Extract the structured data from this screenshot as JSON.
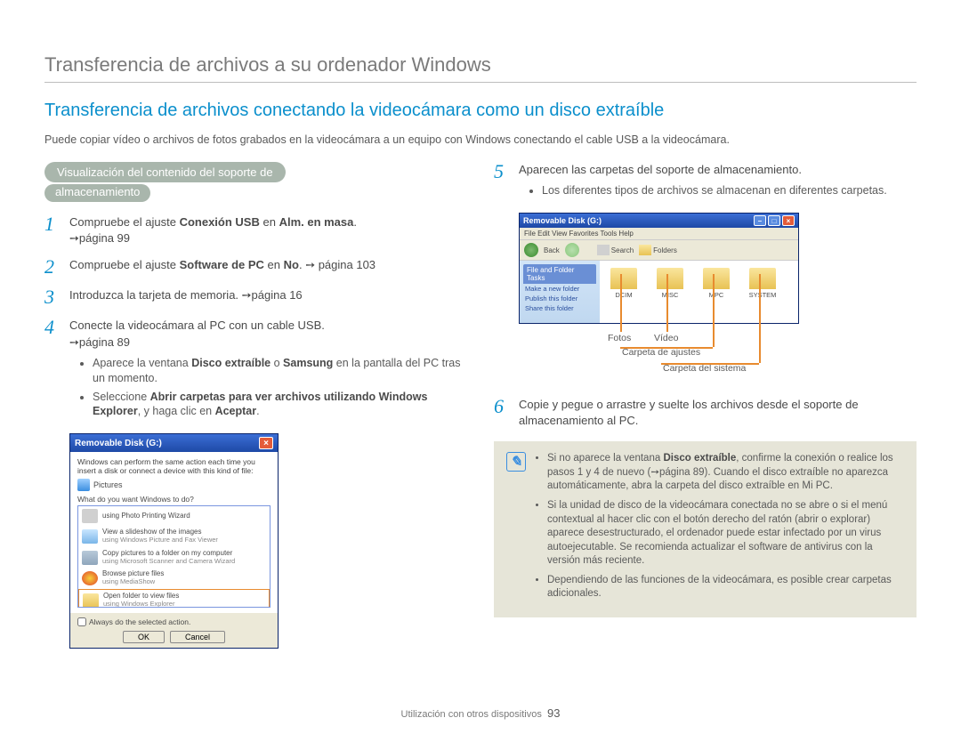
{
  "page": {
    "title": "Transferencia de archivos a su ordenador Windows",
    "section_title": "Transferencia de archivos conectando la videocámara como un disco extraíble",
    "intro": "Puede copiar vídeo o archivos de fotos grabados en la videocámara a un equipo con Windows conectando el cable USB a la videocámara.",
    "footer_text": "Utilización con otros dispositivos",
    "page_number": "93"
  },
  "pill": {
    "line1": "Visualización del contenido del soporte de",
    "line2": "almacenamiento"
  },
  "steps": {
    "s1": {
      "num": "1",
      "pre": "Compruebe el ajuste ",
      "b1": "Conexión USB",
      "mid": " en ",
      "b2": "Alm. en masa",
      "post": ". ",
      "ref": "➙página 99"
    },
    "s2": {
      "num": "2",
      "pre": "Compruebe el ajuste ",
      "b1": "Software de PC",
      "mid": " en ",
      "b2": "No",
      "post": ". ➙ página 103"
    },
    "s3": {
      "num": "3",
      "text": "Introduzca la tarjeta de memoria. ➙página 16"
    },
    "s4": {
      "num": "4",
      "text": "Conecte la videocámara al PC con un cable USB. ",
      "ref": "➙página 89",
      "b1_pre": "Aparece la ventana ",
      "b1_bold1": "Disco extraíble",
      "b1_mid": " o ",
      "b1_bold2": "Samsung",
      "b1_post": " en la pantalla del PC tras un momento.",
      "b2_pre": "Seleccione ",
      "b2_bold1": "Abrir carpetas para ver archivos utilizando Windows Explorer",
      "b2_mid": ", y haga clic en ",
      "b2_bold2": "Aceptar",
      "b2_post": "."
    },
    "s5": {
      "num": "5",
      "text": "Aparecen las carpetas del soporte de almacenamiento.",
      "bullet": "Los diferentes tipos de archivos se almacenan en diferentes carpetas."
    },
    "s6": {
      "num": "6",
      "text": "Copie y pegue o arrastre y suelte los archivos desde el soporte de almacenamiento al PC."
    }
  },
  "autoplay": {
    "title": "Removable Disk (G:)",
    "desc": "Windows can perform the same action each time you insert a disk or connect a device with this kind of file:",
    "pictures_label": "Pictures",
    "prompt": "What do you want Windows to do?",
    "items": [
      {
        "icon": "printer",
        "t": "using Photo Printing Wizard",
        "s": ""
      },
      {
        "icon": "viewer",
        "t": "View a slideshow of the images",
        "s": "using Windows Picture and Fax Viewer"
      },
      {
        "icon": "scanner",
        "t": "Copy pictures to a folder on my computer",
        "s": "using Microsoft Scanner and Camera Wizard"
      },
      {
        "icon": "media",
        "t": "Browse picture files",
        "s": "using MediaShow"
      },
      {
        "icon": "folder",
        "t": "Open folder to view files",
        "s": "using Windows Explorer",
        "selected": true
      }
    ],
    "checkbox": "Always do the selected action.",
    "ok": "OK",
    "cancel": "Cancel"
  },
  "explorer": {
    "title": "Removable Disk (G:)",
    "menu": "File   Edit   View   Favorites   Tools   Help",
    "tb_back": "Back",
    "tb_search": "Search",
    "tb_folders": "Folders",
    "side_hdr": "File and Folder Tasks",
    "side1": "Make a new folder",
    "side2": "Publish this folder",
    "side3": "Share this folder",
    "folders": [
      "DCIM",
      "MISC",
      "MPC",
      "SYSTEM"
    ]
  },
  "callouts": {
    "fotos": "Fotos",
    "video": "Vídeo",
    "ajustes": "Carpeta de ajustes",
    "sistema": "Carpeta del sistema"
  },
  "notes": {
    "n1_pre": "Si no aparece la ventana ",
    "n1_bold": "Disco extraíble",
    "n1_post": ", confirme la conexión o realice los pasos 1 y 4 de nuevo (➙página 89). Cuando el disco extraíble no aparezca automáticamente, abra la carpeta del disco extraíble en Mi PC.",
    "n2": "Si la unidad de disco de la videocámara conectada no se abre o si el menú contextual al hacer clic con el botón derecho del ratón (abrir o explorar) aparece desestructurado, el ordenador puede estar infectado por un virus autoejecutable. Se recomienda actualizar el software de antivirus con la versión más reciente.",
    "n3": "Dependiendo de las funciones de la videocámara, es posible crear carpetas adicionales."
  },
  "colors": {
    "accent_blue": "#0b8fcc",
    "pill_bg": "#a9b6ac",
    "xp_blue": "#1e49a6",
    "highlight_orange": "#e88b2f",
    "note_bg": "#e6e5d8"
  }
}
